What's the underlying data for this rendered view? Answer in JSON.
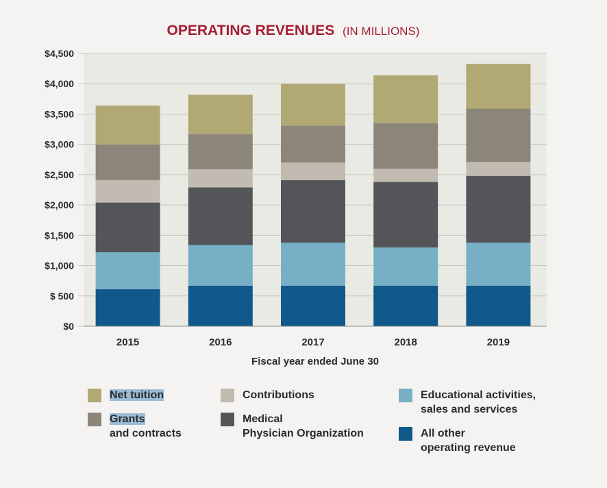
{
  "chart_data": {
    "type": "bar",
    "stacked": true,
    "title": "OPERATING REVENUES",
    "subtitle": "(IN MILLIONS)",
    "xlabel": "Fiscal year ended June 30",
    "ylabel": "",
    "ylim": [
      0,
      4500
    ],
    "yticks": [
      0,
      500,
      1000,
      1500,
      2000,
      2500,
      3000,
      3500,
      4000,
      4500
    ],
    "ytick_labels": [
      "$0",
      "$ 500",
      "$1,000",
      "$1,500",
      "$2,000",
      "$2,500",
      "$3,000",
      "$3,500",
      "$4,000",
      "$4,500"
    ],
    "grid": true,
    "categories": [
      "2015",
      "2016",
      "2017",
      "2018",
      "2019"
    ],
    "series": [
      {
        "name": "All other operating revenue",
        "color": "#10598a",
        "values": [
          610,
          670,
          670,
          670,
          670
        ]
      },
      {
        "name": "Educational activities, sales and services",
        "color": "#76afc6",
        "values": [
          610,
          670,
          710,
          630,
          710
        ]
      },
      {
        "name": "Medical Physician Organization",
        "color": "#545558",
        "values": [
          820,
          950,
          1030,
          1080,
          1100
        ]
      },
      {
        "name": "Contributions",
        "color": "#c2bbb1",
        "values": [
          370,
          300,
          290,
          220,
          230
        ]
      },
      {
        "name": "Grants and contracts",
        "color": "#8c857a",
        "values": [
          590,
          580,
          610,
          750,
          880
        ]
      },
      {
        "name": "Net tuition",
        "color": "#b1a974",
        "values": [
          640,
          650,
          690,
          790,
          740
        ]
      }
    ]
  },
  "legend": [
    {
      "key": "net-tuition",
      "line1": "Net tuition",
      "line2": "",
      "color": "#b1a974"
    },
    {
      "key": "contributions",
      "line1": "Contributions",
      "line2": "",
      "color": "#c2bbb1"
    },
    {
      "key": "educational",
      "line1": "Educational activities,",
      "line2": "sales and services",
      "color": "#76afc6"
    },
    {
      "key": "grants",
      "line1": "Grants",
      "line2": "and contracts",
      "color": "#8c857a"
    },
    {
      "key": "medical",
      "line1": "Medical",
      "line2": "Physician Organization",
      "color": "#545558"
    },
    {
      "key": "all-other",
      "line1": "All other",
      "line2": "operating revenue",
      "color": "#10598a"
    }
  ],
  "colors": {
    "title": "#a31f35",
    "plot_bg": "#eaeae4",
    "grid": "#c6c6c0",
    "text": "#2b2b2b"
  }
}
